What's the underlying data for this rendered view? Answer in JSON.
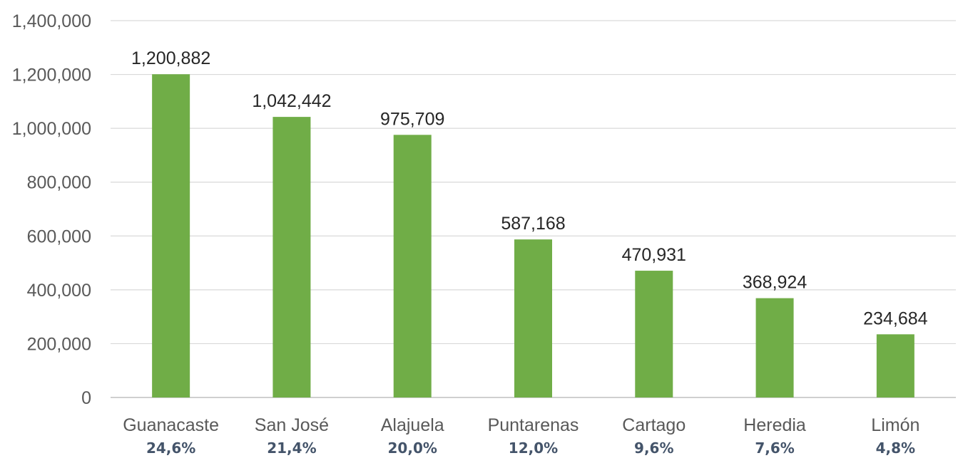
{
  "chart_data": {
    "type": "bar",
    "title": "",
    "xlabel": "",
    "ylabel": "",
    "categories": [
      "Guanacaste",
      "San José",
      "Alajuela",
      "Puntarenas",
      "Cartago",
      "Heredia",
      "Limón"
    ],
    "values": [
      1200882,
      1042442,
      975709,
      587168,
      470931,
      368924,
      234684
    ],
    "value_labels": [
      "1,200,882",
      "1,042,442",
      "975,709",
      "587,168",
      "470,931",
      "368,924",
      "234,684"
    ],
    "percent_labels": [
      "24,6%",
      "21,4%",
      "20,0%",
      "12,0%",
      "9,6%",
      "7,6%",
      "4,8%"
    ],
    "ylim": [
      0,
      1400000
    ],
    "yticks": [
      0,
      200000,
      400000,
      600000,
      800000,
      1000000,
      1200000,
      1400000
    ],
    "ytick_labels": [
      "0",
      "200,000",
      "400,000",
      "600,000",
      "800,000",
      "1,000,000",
      "1,200,000",
      "1,400,000"
    ],
    "grid": true,
    "legend": "none",
    "colors": {
      "bar": "#70ad47",
      "gridline": "#d9d9d9",
      "tick_text": "#595959",
      "value_text": "#262626",
      "percent_text": "#44546a"
    }
  }
}
